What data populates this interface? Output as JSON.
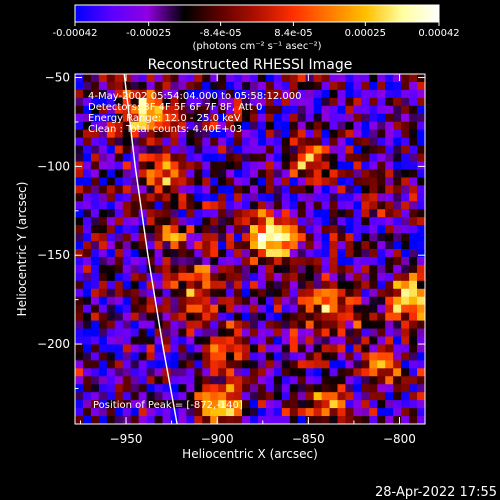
{
  "colorbar": {
    "tick_labels": [
      "-0.00042",
      "-0.00025",
      "-8.4e-05",
      "8.4e-05",
      "0.00025",
      "0.00042"
    ],
    "tick_values": [
      -0.00042,
      -0.00025,
      -8.4e-05,
      8.4e-05,
      0.00025,
      0.00042
    ],
    "range": [
      -0.00042,
      0.00042
    ],
    "unit_label": "(photons cm⁻² s⁻¹ asec⁻²)",
    "colormap": [
      "#0000ff",
      "#5a00ff",
      "#9000e0",
      "#000000",
      "#600000",
      "#b01000",
      "#ff3000",
      "#ff7a00",
      "#ffc000",
      "#ffffa0",
      "#ffffff"
    ]
  },
  "chart_data": {
    "type": "heatmap",
    "title": "Reconstructed RHESSI Image",
    "xlabel": "Heliocentric X (arcsec)",
    "ylabel": "Heliocentric Y (arcsec)",
    "xlim": [
      -978,
      -786
    ],
    "ylim": [
      -245,
      -48
    ],
    "x_ticks": [
      -950,
      -900,
      -850,
      -800
    ],
    "y_ticks": [
      -50,
      -100,
      -150,
      -200
    ],
    "x_tick_labels": [
      "−950",
      "−900",
      "−850",
      "−800"
    ],
    "y_tick_labels": [
      "−50",
      "−100",
      "−150",
      "−200"
    ],
    "annotations": [
      "4-May-2002 05:54:04.000 to 05:58:12.000",
      "Detectors: 3F 4F 5F 6F 7F 8F, Att 0",
      "Energy Range: 12.0 - 25.0 keV",
      "Clean : Total counts: 4.40E+03"
    ],
    "peak_label": "Position of Peak = [-872,-140]",
    "peak": [
      -872,
      -140
    ],
    "limb_curve": [
      [
        -951,
        -48
      ],
      [
        -945,
        -100
      ],
      [
        -938,
        -150
      ],
      [
        -930,
        -200
      ],
      [
        -922,
        -245
      ]
    ],
    "sources": [
      {
        "x": -871,
        "y": -140,
        "sigma": 9,
        "amp": 1.0
      },
      {
        "x": -940,
        "y": -70,
        "sigma": 10,
        "amp": 0.75
      },
      {
        "x": -930,
        "y": -105,
        "sigma": 9,
        "amp": 0.6
      },
      {
        "x": -925,
        "y": -140,
        "sigma": 8,
        "amp": 0.5
      },
      {
        "x": -910,
        "y": -170,
        "sigma": 12,
        "amp": 0.55
      },
      {
        "x": -895,
        "y": -205,
        "sigma": 9,
        "amp": 0.5
      },
      {
        "x": -900,
        "y": -235,
        "sigma": 9,
        "amp": 0.75
      },
      {
        "x": -850,
        "y": -95,
        "sigma": 8,
        "amp": 0.55
      },
      {
        "x": -840,
        "y": -180,
        "sigma": 14,
        "amp": 0.55
      },
      {
        "x": -840,
        "y": -235,
        "sigma": 9,
        "amp": 0.5
      },
      {
        "x": -795,
        "y": -175,
        "sigma": 8,
        "amp": 0.85
      },
      {
        "x": -805,
        "y": -120,
        "sigma": 10,
        "amp": 0.35
      },
      {
        "x": -810,
        "y": -215,
        "sigma": 8,
        "amp": 0.5
      }
    ]
  },
  "timestamp": "28-Apr-2022 17:55"
}
